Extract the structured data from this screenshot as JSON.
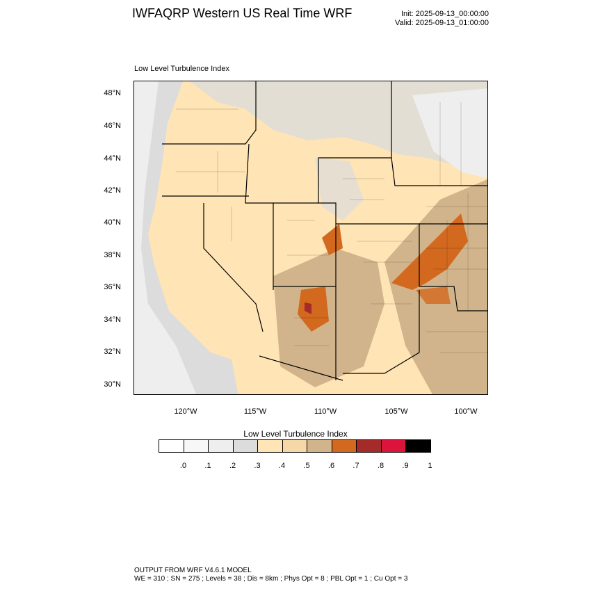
{
  "header": {
    "title": "IWFAQRP Western US Real Time WRF",
    "init": "Init: 2025-09-13_00:00:00",
    "valid": "Valid: 2025-09-13_01:00:00"
  },
  "map": {
    "subtitle": "Low Level Turbulence Index",
    "lat_labels": [
      "48°N",
      "46°N",
      "44°N",
      "42°N",
      "40°N",
      "38°N",
      "36°N",
      "34°N",
      "32°N",
      "30°N"
    ],
    "lon_labels": [
      "120°W",
      "115°W",
      "110°W",
      "105°W",
      "100°W"
    ]
  },
  "colorbar": {
    "title": "Low Level Turbulence Index",
    "colors": [
      "#ffffff",
      "#f7f7f7",
      "#eeeeee",
      "#dcdcdc",
      "#ffe4b5",
      "#f5d7a8",
      "#d2b48c",
      "#d2691e",
      "#a52a2a",
      "#dc143c",
      "#000000"
    ],
    "labels": [
      ".0",
      ".1",
      ".2",
      ".3",
      ".4",
      ".5",
      ".6",
      ".7",
      ".8",
      ".9",
      "1"
    ]
  },
  "footer": {
    "line1": "OUTPUT FROM WRF V4.6.1 MODEL",
    "line2": "WE = 310 ; SN = 275 ; Levels = 38 ; Dis = 8km ; Phys Opt = 8 ; PBL Opt = 1 ; Cu Opt = 3"
  }
}
